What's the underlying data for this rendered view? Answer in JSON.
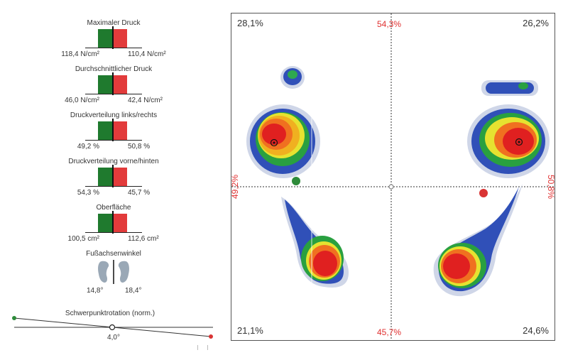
{
  "metrics": [
    {
      "title": "Maximaler Druck",
      "left_value": "118,4 N/cm²",
      "right_value": "110,4 N/cm²"
    },
    {
      "title": "Durchschnittlicher Druck",
      "left_value": "46,0 N/cm²",
      "right_value": "42,4 N/cm²"
    },
    {
      "title": "Druckverteilung links/rechts",
      "left_value": "49,2 %",
      "right_value": "50,8 %"
    },
    {
      "title": "Druckverteilung vorne/hinten",
      "left_value": "54,3 %",
      "right_value": "45,7 %"
    },
    {
      "title": "Oberfläche",
      "left_value": "100,5 cm²",
      "right_value": "112,6 cm²"
    }
  ],
  "foot_axis": {
    "title": "Fußachsenwinkel",
    "left_value": "14,8°",
    "right_value": "18,4°"
  },
  "rotation": {
    "title": "Schwerpunktrotation (norm.)",
    "value": "4,0°"
  },
  "pressure_map": {
    "top_left": "28,1%",
    "top_right": "26,2%",
    "bottom_left": "21,1%",
    "bottom_right": "24,6%",
    "front": "54,3%",
    "back": "45,7%",
    "left": "49,2%",
    "right": "50,8%"
  },
  "colors": {
    "left_bar": "#1f7a2e",
    "right_bar": "#e23b3b",
    "red_text": "#e03030"
  }
}
